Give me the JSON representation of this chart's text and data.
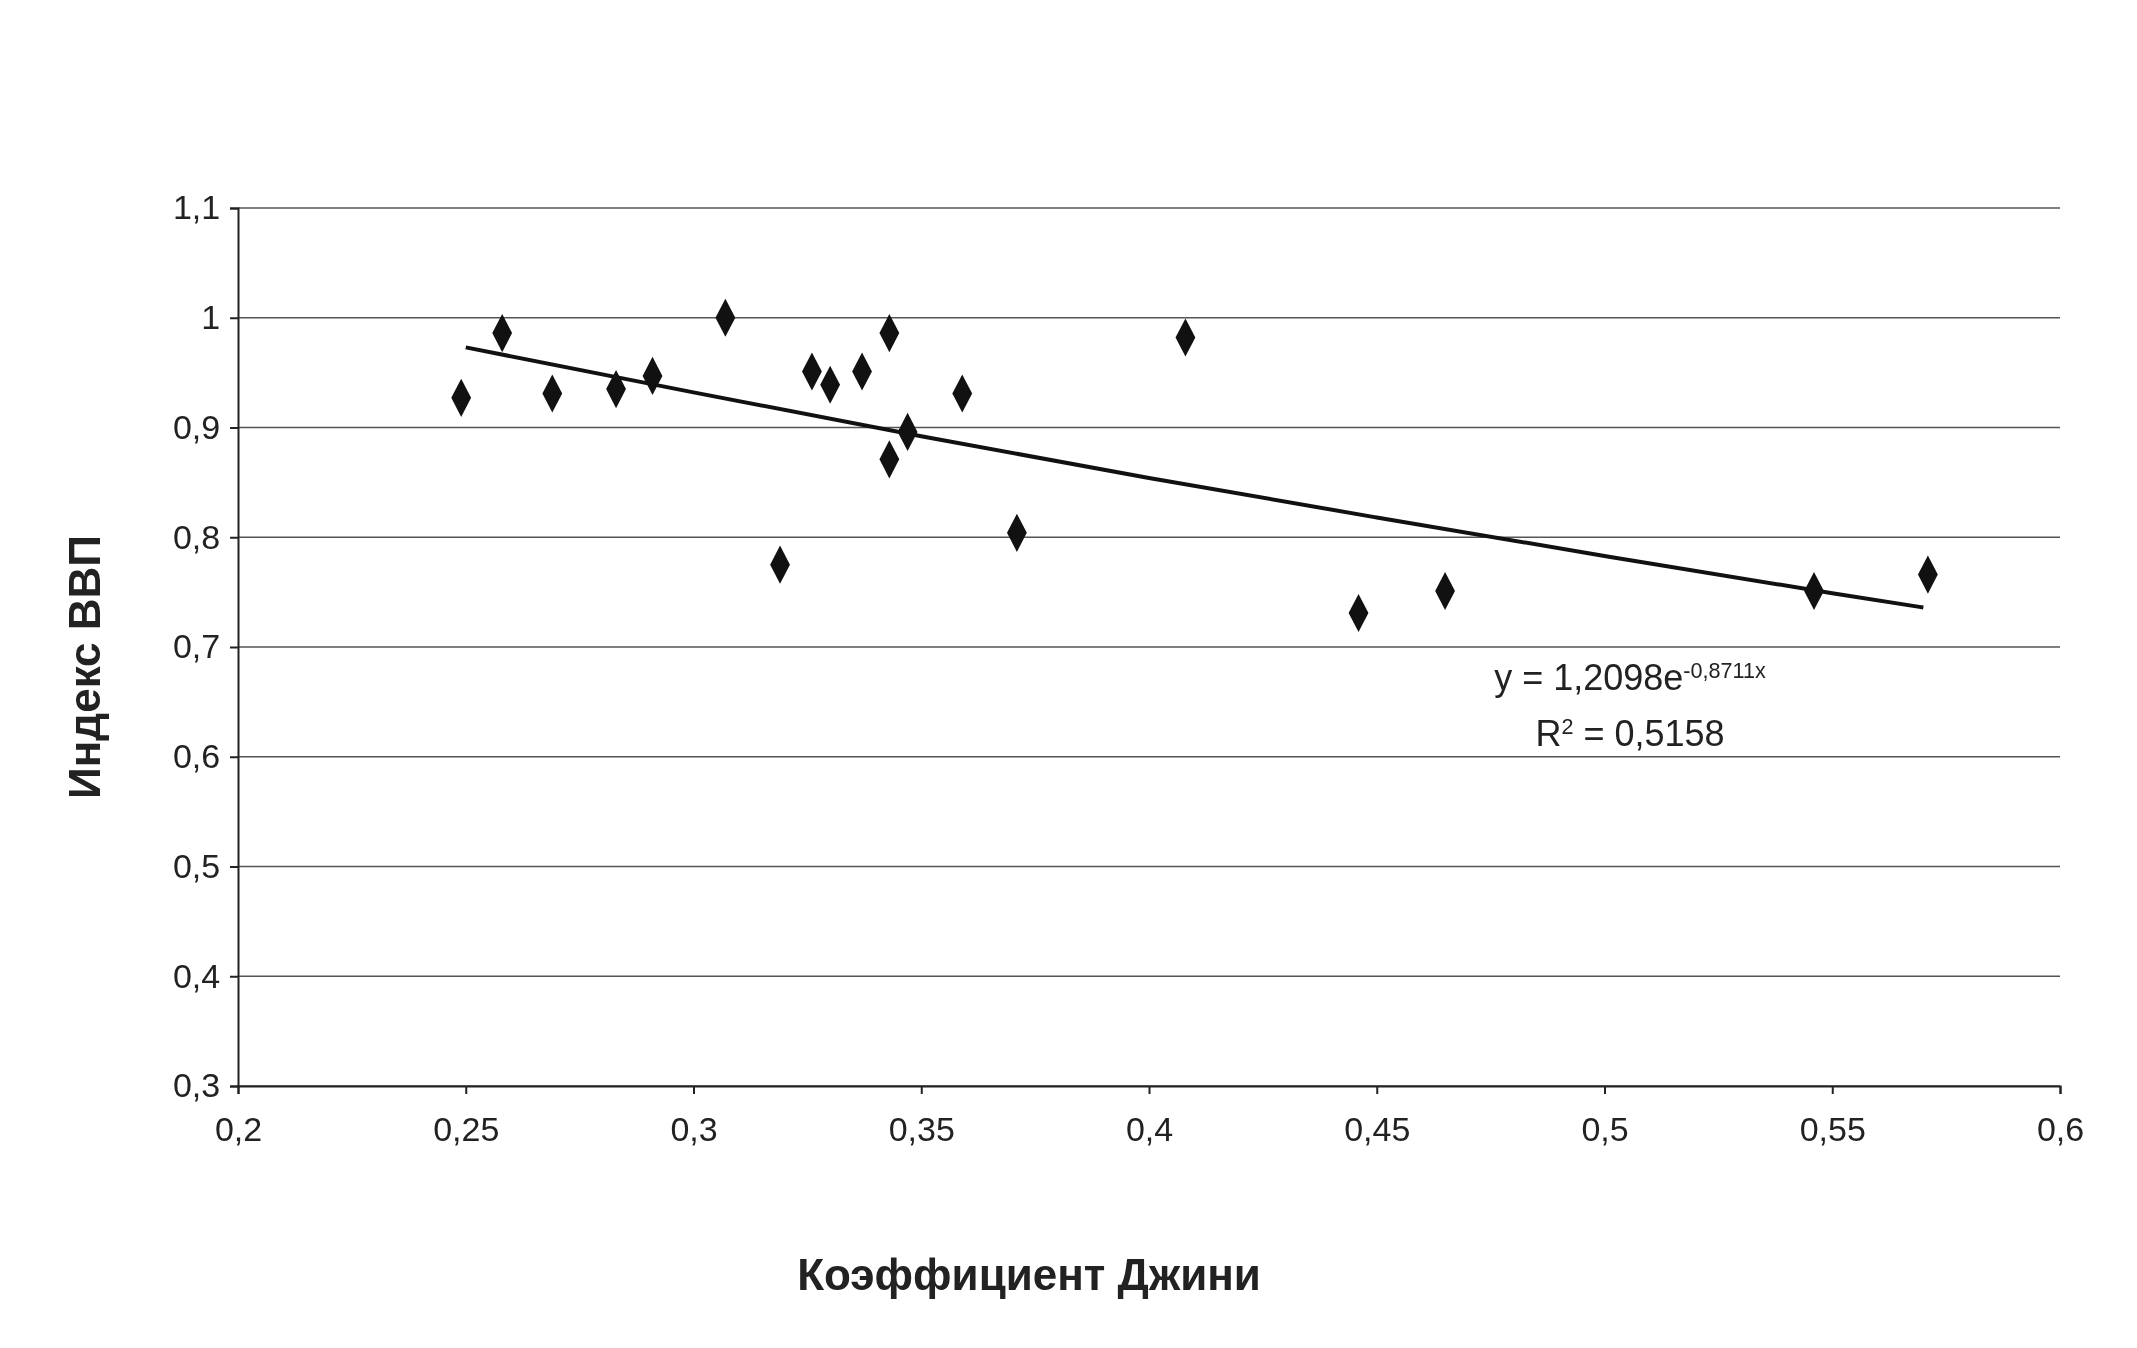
{
  "chart_data": {
    "type": "scatter",
    "xlabel": "Коэффициент Джини",
    "ylabel": "Индекс ВВП",
    "xlim": [
      0.2,
      0.6
    ],
    "xticks": [
      {
        "value": 0.2,
        "label": "0,2"
      },
      {
        "value": 0.25,
        "label": "0,25"
      },
      {
        "value": 0.3,
        "label": "0,3"
      },
      {
        "value": 0.35,
        "label": "0,35"
      },
      {
        "value": 0.4,
        "label": "0,4"
      },
      {
        "value": 0.45,
        "label": "0,45"
      },
      {
        "value": 0.5,
        "label": "0,5"
      },
      {
        "value": 0.55,
        "label": "0,55"
      },
      {
        "value": 0.6,
        "label": "0,6"
      }
    ],
    "ylim": [
      0.3,
      1.1
    ],
    "yticks": [
      {
        "value": 0.3,
        "label": "0,3"
      },
      {
        "value": 0.4,
        "label": "0,4"
      },
      {
        "value": 0.5,
        "label": "0,5"
      },
      {
        "value": 0.6,
        "label": "0,6"
      },
      {
        "value": 0.7,
        "label": "0,7"
      },
      {
        "value": 0.8,
        "label": "0,8"
      },
      {
        "value": 0.9,
        "label": "0,9"
      },
      {
        "value": 1,
        "label": "1"
      },
      {
        "value": 1.1,
        "label": "1,1"
      }
    ],
    "grid": "y",
    "series": [
      {
        "marker": "diamond",
        "color": "#111111",
        "x": [
          0.249,
          0.258,
          0.269,
          0.283,
          0.291,
          0.307,
          0.319,
          0.326,
          0.33,
          0.337,
          0.343,
          0.343,
          0.347,
          0.359,
          0.371,
          0.408,
          0.446,
          0.465,
          0.546,
          0.571
        ],
        "values": [
          0.927,
          0.986,
          0.931,
          0.935,
          0.947,
          1.0,
          0.775,
          0.951,
          0.939,
          0.951,
          0.986,
          0.871,
          0.896,
          0.931,
          0.804,
          0.982,
          0.731,
          0.751,
          0.751,
          0.766
        ]
      },
      {
        "type": "line",
        "color": "#111111",
        "x": [
          0.25,
          0.3,
          0.35,
          0.4,
          0.45,
          0.5,
          0.55,
          0.57
        ],
        "values": [
          0.973,
          0.932,
          0.892,
          0.854,
          0.818,
          0.783,
          0.749,
          0.736
        ]
      }
    ],
    "annotations": [
      "y = 1,2098e$^{-0,8711x}$",
      "R$^{2}$ = 0,5158"
    ]
  }
}
